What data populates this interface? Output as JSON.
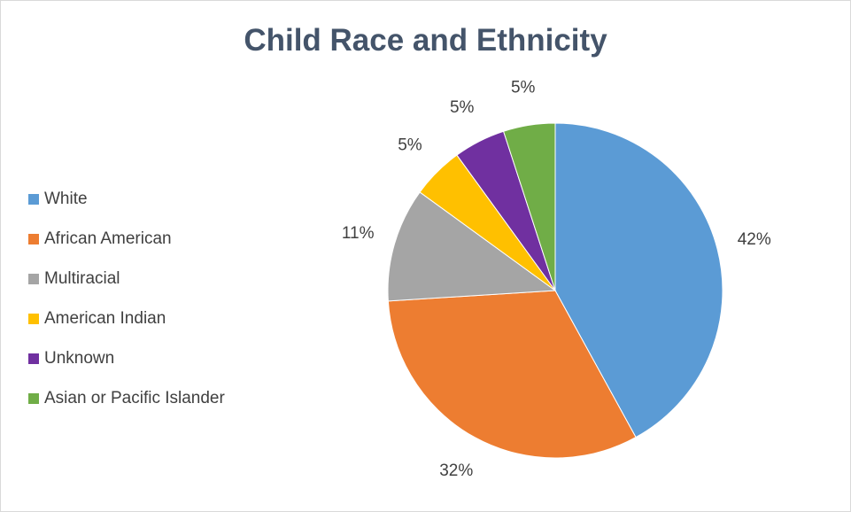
{
  "chart_data": {
    "type": "pie",
    "title": "Child Race and Ethnicity",
    "legend_position": "left",
    "slices": [
      {
        "name": "White",
        "value": 42,
        "label": "42%",
        "color": "#5b9bd5"
      },
      {
        "name": "African American",
        "value": 32,
        "label": "32%",
        "color": "#ed7d31"
      },
      {
        "name": "Multiracial",
        "value": 11,
        "label": "11%",
        "color": "#a5a5a5"
      },
      {
        "name": "American Indian",
        "value": 5,
        "label": "5%",
        "color": "#ffc000"
      },
      {
        "name": "Unknown",
        "value": 5,
        "label": "5%",
        "color": "#7030a0"
      },
      {
        "name": "Asian or Pacific Islander",
        "value": 5,
        "label": "5%",
        "color": "#70ad47"
      }
    ]
  }
}
